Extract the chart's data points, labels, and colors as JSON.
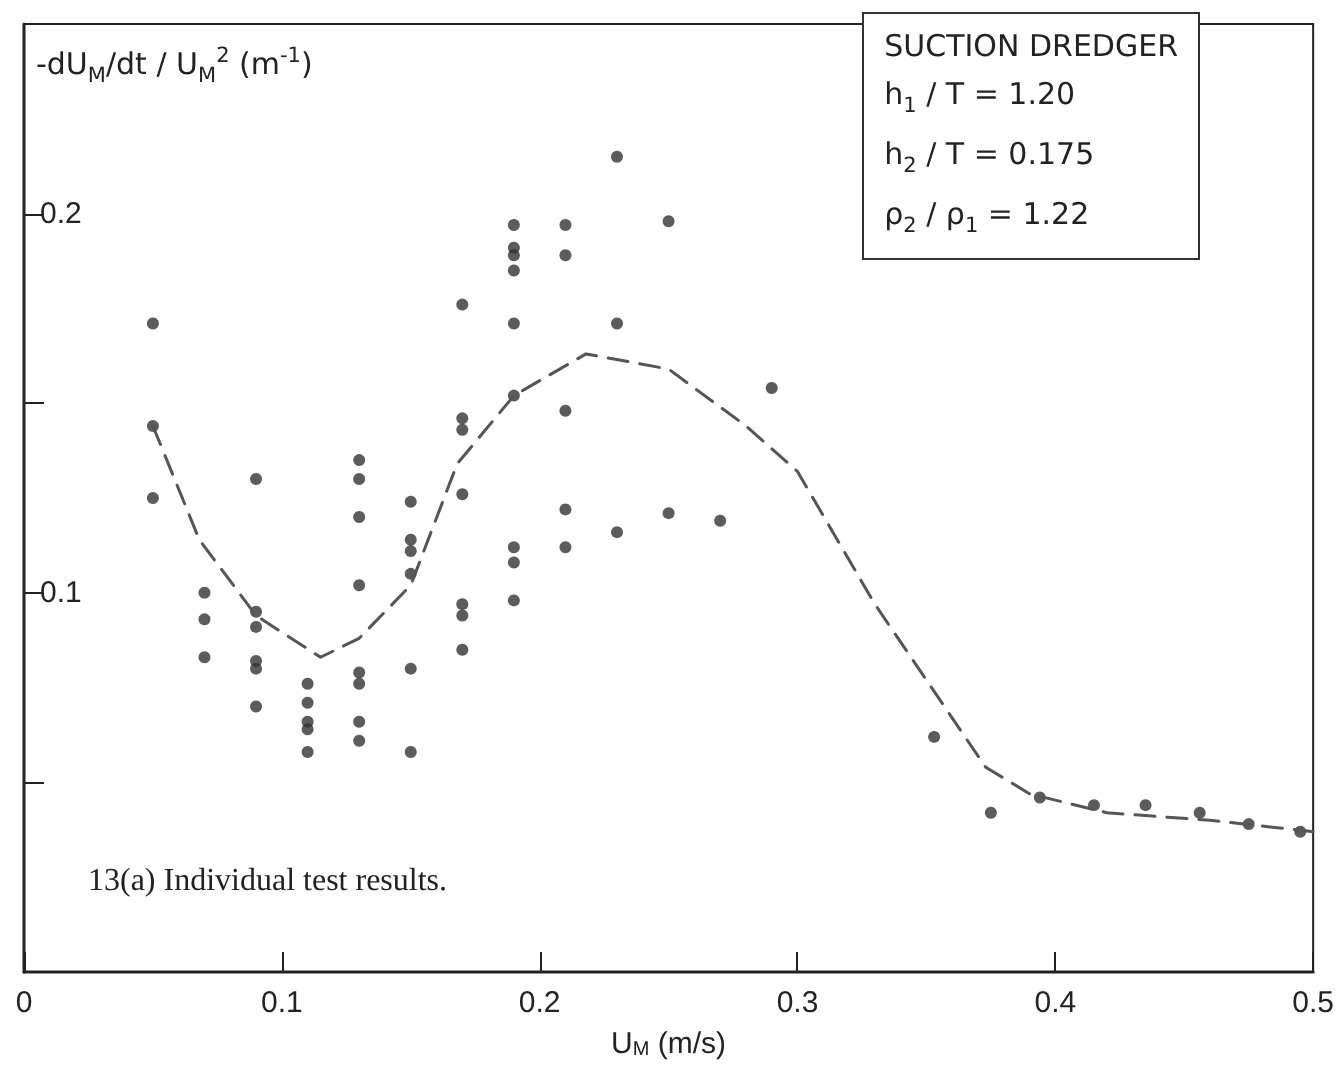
{
  "chart_data": {
    "type": "scatter",
    "xlabel": "U$_{M}$ (m/s)",
    "ylabel": "-dU$_{M}$/dt / U$_{M}$$^{2}$ (m$^{-1}$)",
    "xlim": [
      0,
      0.5
    ],
    "xticks": [
      0,
      0.1,
      0.2,
      0.3,
      0.4,
      0.5
    ],
    "ylim": [
      0,
      0.25
    ],
    "yticks": [
      {
        "value": 0.05,
        "label": null
      },
      0.1,
      {
        "value": 0.15,
        "label": null
      },
      0.2
    ],
    "grid": false,
    "series": [
      {
        "color": "#333333",
        "marker": "circle",
        "x": [
          0.05,
          0.05,
          0.05,
          0.07,
          0.07,
          0.07,
          0.09,
          0.09,
          0.09,
          0.09,
          0.09,
          0.09,
          0.11,
          0.11,
          0.11,
          0.11,
          0.11,
          0.13,
          0.13,
          0.13,
          0.13,
          0.13,
          0.13,
          0.13,
          0.13,
          0.15,
          0.15,
          0.15,
          0.15,
          0.15,
          0.15,
          0.17,
          0.17,
          0.17,
          0.17,
          0.17,
          0.17,
          0.17,
          0.19,
          0.19,
          0.19,
          0.19,
          0.19,
          0.19,
          0.19,
          0.19,
          0.19,
          0.21,
          0.21,
          0.21,
          0.21,
          0.21,
          0.23,
          0.23,
          0.23,
          0.25,
          0.25,
          0.27,
          0.29,
          0.353,
          0.375,
          0.394,
          0.415,
          0.435,
          0.456,
          0.475,
          0.495
        ],
        "values": [
          0.171,
          0.144,
          0.125,
          0.1,
          0.093,
          0.083,
          0.13,
          0.095,
          0.091,
          0.082,
          0.08,
          0.07,
          0.076,
          0.071,
          0.066,
          0.064,
          0.058,
          0.135,
          0.13,
          0.12,
          0.102,
          0.079,
          0.076,
          0.066,
          0.061,
          0.124,
          0.114,
          0.111,
          0.105,
          0.08,
          0.058,
          0.176,
          0.146,
          0.143,
          0.126,
          0.097,
          0.094,
          0.085,
          0.197,
          0.191,
          0.189,
          0.185,
          0.171,
          0.152,
          0.112,
          0.108,
          0.098,
          0.197,
          0.189,
          0.148,
          0.122,
          0.112,
          0.215,
          0.171,
          0.116,
          0.198,
          0.121,
          0.119,
          0.154,
          0.062,
          0.042,
          0.046,
          0.044,
          0.044,
          0.042,
          0.039,
          0.037
        ]
      },
      {
        "type": "line",
        "color": "#555555",
        "marker": "none",
        "line_style": "dashed",
        "x": [
          0.05,
          0.068,
          0.09,
          0.115,
          0.13,
          0.15,
          0.168,
          0.19,
          0.218,
          0.25,
          0.28,
          0.3,
          0.33,
          0.373,
          0.39,
          0.42,
          0.46,
          0.5
        ],
        "values": [
          0.144,
          0.114,
          0.094,
          0.083,
          0.088,
          0.102,
          0.134,
          0.152,
          0.163,
          0.159,
          0.144,
          0.132,
          0.097,
          0.054,
          0.047,
          0.042,
          0.04,
          0.037
        ]
      }
    ],
    "annotations": [
      "SUCTION DREDGER",
      "h$_{1}$ / T = 1.20",
      "h$_{2}$ / T = 0.175",
      "ρ$_{2}$ / ρ$_{1}$ = 1.22",
      "13(a) Individual test results."
    ]
  }
}
